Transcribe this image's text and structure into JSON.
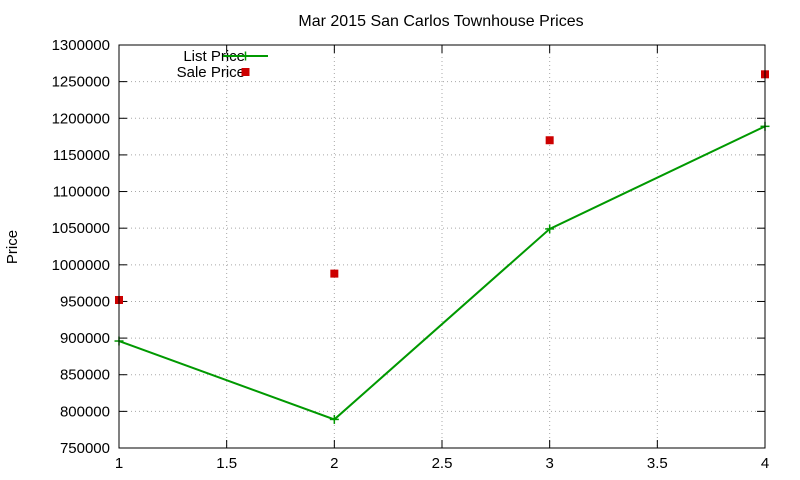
{
  "chart_data": {
    "type": "line",
    "title": "Mar 2015 San Carlos Townhouse Prices",
    "xlabel": "",
    "ylabel": "Price",
    "xlim": [
      1,
      4
    ],
    "ylim": [
      750000,
      1300000
    ],
    "xticks": [
      "1",
      "1.5",
      "2",
      "2.5",
      "3",
      "3.5",
      "4"
    ],
    "xtick_values": [
      1,
      1.5,
      2,
      2.5,
      3,
      3.5,
      4
    ],
    "yticks": [
      "750000",
      "800000",
      "850000",
      "900000",
      "950000",
      "1000000",
      "1050000",
      "1100000",
      "1150000",
      "1200000",
      "1250000",
      "1300000"
    ],
    "ytick_values": [
      750000,
      800000,
      850000,
      900000,
      950000,
      1000000,
      1050000,
      1100000,
      1150000,
      1200000,
      1250000,
      1300000
    ],
    "grid": true,
    "legend_position": "top-left",
    "series": [
      {
        "name": "List Price",
        "style": "line-with-cross-markers",
        "color": "#009900",
        "x": [
          1,
          2,
          3,
          4
        ],
        "y": [
          896000,
          789000,
          1049000,
          1189000
        ]
      },
      {
        "name": "Sale Price",
        "style": "square-points",
        "color": "#cc0000",
        "x": [
          1,
          2,
          3,
          4
        ],
        "y": [
          952000,
          988000,
          1170000,
          1260000
        ]
      }
    ]
  }
}
